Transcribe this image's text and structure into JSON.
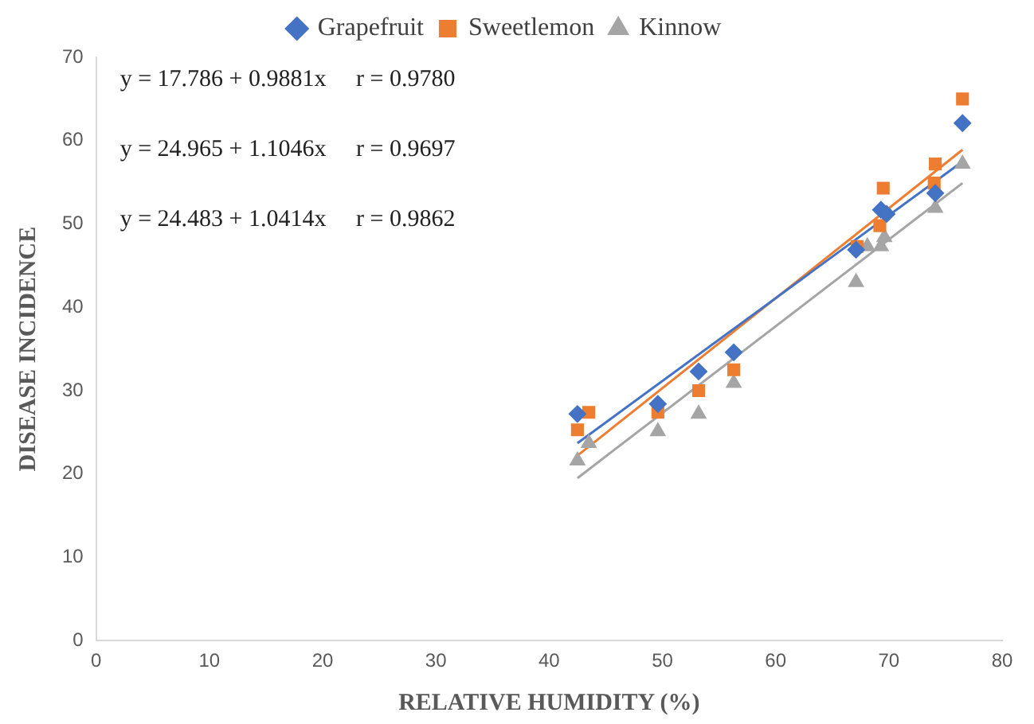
{
  "chart_data": {
    "type": "scatter",
    "xlabel": "RELATIVE HUMIDITY (%)",
    "ylabel": "DISEASE INCIDENCE",
    "xlim": [
      0,
      80
    ],
    "xticks": [
      0,
      10,
      20,
      30,
      40,
      50,
      60,
      70,
      80
    ],
    "ylim": [
      0,
      70
    ],
    "yticks": [
      0,
      10,
      20,
      30,
      40,
      50,
      60,
      70
    ],
    "grid": false,
    "legend": "top",
    "annotations": [
      "y = 17.786 + 0.9881x     r = 0.9780",
      "y = 24.965 + 1.1046x     r = 0.9697",
      "y = 24.483 + 1.0414x     r = 0.9862"
    ],
    "series": [
      {
        "name": "Grapefruit",
        "color": "#4472c4",
        "marker": "diamond",
        "x": [
          42.5,
          49.6,
          53.2,
          56.3,
          67.1,
          69.3,
          69.8,
          74.1,
          76.5
        ],
        "values": [
          27.2,
          28.4,
          32.3,
          34.6,
          46.9,
          51.7,
          51.2,
          53.7,
          62.1
        ]
      },
      {
        "name": "Sweetlemon",
        "color": "#ed7d31",
        "marker": "square",
        "x": [
          42.5,
          43.5,
          49.6,
          53.2,
          56.3,
          67.2,
          69.2,
          69.5,
          74.0,
          74.1,
          76.5
        ],
        "values": [
          25.3,
          27.4,
          27.4,
          30.0,
          32.5,
          47.3,
          49.8,
          54.3,
          54.9,
          57.2,
          65.0
        ]
      },
      {
        "name": "Kinnow",
        "color": "#a5a5a5",
        "marker": "triangle",
        "x": [
          42.5,
          43.5,
          49.6,
          53.2,
          56.3,
          67.1,
          68.1,
          69.3,
          69.6,
          74.1,
          76.5
        ],
        "values": [
          21.6,
          23.7,
          25.1,
          27.2,
          30.9,
          43.0,
          47.3,
          47.3,
          48.4,
          51.9,
          57.2
        ]
      },
      {
        "type": "line",
        "color": "#4472c4",
        "marker": "none",
        "x": [
          42.5,
          76.5
        ],
        "values": [
          23.7,
          57.5
        ]
      },
      {
        "type": "line",
        "color": "#ed7d31",
        "marker": "none",
        "x": [
          42.5,
          76.5
        ],
        "values": [
          22.2,
          58.9
        ]
      },
      {
        "type": "line",
        "color": "#a5a5a5",
        "marker": "none",
        "x": [
          42.5,
          76.5
        ],
        "values": [
          19.5,
          54.9
        ]
      }
    ]
  }
}
